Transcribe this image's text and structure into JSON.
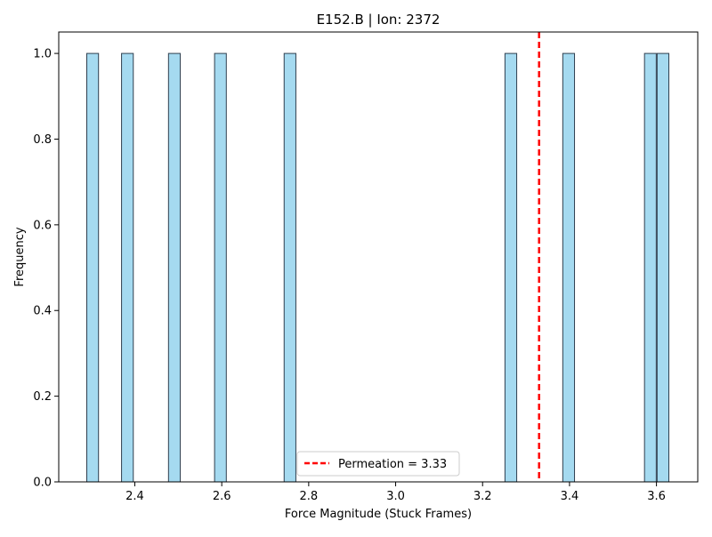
{
  "chart_data": {
    "type": "bar",
    "title": "E152.B | Ion: 2372",
    "xlabel": "Force Magnitude (Stuck Frames)",
    "ylabel": "Frequency",
    "xlim": [
      2.225,
      3.695
    ],
    "ylim": [
      0,
      1.05
    ],
    "xticks": [
      "2.4",
      "2.6",
      "2.8",
      "3.0",
      "3.2",
      "3.4",
      "3.6"
    ],
    "yticks": [
      "0.0",
      "0.2",
      "0.4",
      "0.6",
      "0.8",
      "1.0"
    ],
    "bin_width": 0.027,
    "bars": [
      {
        "x": 2.303,
        "value": 1
      },
      {
        "x": 2.383,
        "value": 1
      },
      {
        "x": 2.491,
        "value": 1
      },
      {
        "x": 2.597,
        "value": 1
      },
      {
        "x": 2.757,
        "value": 1
      },
      {
        "x": 3.265,
        "value": 1
      },
      {
        "x": 3.398,
        "value": 1
      },
      {
        "x": 3.586,
        "value": 1
      },
      {
        "x": 3.615,
        "value": 1
      }
    ],
    "bar_color": "#87CEEB",
    "bar_edge_color": "#2f3f4f",
    "reference_line": {
      "x": 3.33,
      "color": "#ff0000",
      "label": "Permeation = 3.33"
    },
    "legend_position": "bottom-center",
    "grid": false
  }
}
